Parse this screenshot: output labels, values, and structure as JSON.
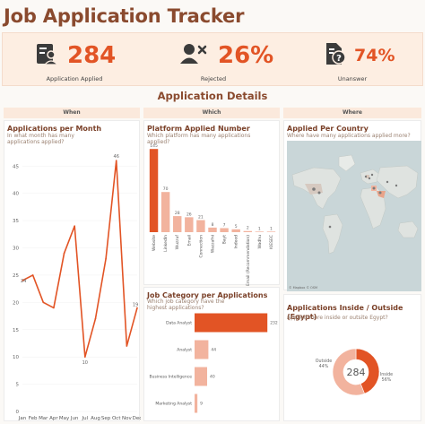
{
  "header": {
    "title": "Job Application Tracker"
  },
  "kpis": [
    {
      "icon": "id-card-icon",
      "value": "284",
      "label": "Application Applied"
    },
    {
      "icon": "user-x-icon",
      "value": "26%",
      "label": "Rejected"
    },
    {
      "icon": "file-question-icon",
      "value": "74%",
      "label": "Unanswer"
    }
  ],
  "section": {
    "title": "Application Details"
  },
  "columns": {
    "when": "When",
    "which": "Which",
    "where": "Where"
  },
  "colors": {
    "accent": "#e25425",
    "light": "#f2b39e",
    "title": "#8a4a2e",
    "band": "#fdeee2"
  },
  "panels": {
    "month": {
      "title": "Applications per Month",
      "subtitle": "In what month has many applications applied?"
    },
    "platform": {
      "title": "Platform Applied Number",
      "subtitle": "Which platform has many applications applied?"
    },
    "country": {
      "title": "Applied Per Country",
      "subtitle": "Where have many applications applied more?",
      "map_note": "© Mapbox © OSM"
    },
    "category": {
      "title": "Job Category per Applications",
      "subtitle": "Which job category have the highest applications?"
    },
    "inout": {
      "title": "Applications Inside / Outside (Egypt)",
      "subtitle": "Applied more inside or outsite Egypt?",
      "center": "284"
    }
  },
  "chart_data": [
    {
      "type": "line",
      "title": "Applications per Month",
      "x": [
        "Jan",
        "Feb",
        "Mar",
        "Apr",
        "May",
        "Jun",
        "Jul",
        "Aug",
        "Sep",
        "Oct",
        "Nov",
        "Dec"
      ],
      "values": [
        24,
        25,
        20,
        19,
        29,
        34,
        10,
        17,
        28,
        46,
        12,
        19
      ],
      "point_labels": {
        "0": "24",
        "6": "10",
        "9": "46",
        "11": "19"
      },
      "yticks": [
        0,
        5,
        10,
        15,
        20,
        25,
        30,
        35,
        40,
        45
      ],
      "ylim": [
        0,
        48
      ]
    },
    {
      "type": "bar",
      "title": "Platform Applied Number",
      "categories": [
        "Website",
        "LinkedIn",
        "Wuzzuf",
        "Email",
        "Connection",
        "Wazzafni",
        "Bayt",
        "Indeed",
        "Email (Recommendation)",
        "Wadhu",
        "KIESEC"
      ],
      "values": [
        145,
        70,
        28,
        26,
        21,
        8,
        7,
        5,
        2,
        1,
        1
      ],
      "ylim": [
        0,
        150
      ]
    },
    {
      "type": "bar",
      "orientation": "horizontal",
      "title": "Job Category per Applications",
      "categories": [
        "Data Analyst",
        "Analyst",
        "Business Intelligence",
        "Marketing Analyst"
      ],
      "values": [
        232,
        44,
        40,
        9
      ],
      "xlim": [
        0,
        240
      ]
    },
    {
      "type": "pie",
      "title": "Applications Inside / Outside (Egypt)",
      "slices": [
        {
          "name": "Outside",
          "label": "Outside\n44%",
          "value": 44
        },
        {
          "name": "Inside",
          "label": "Inside\n56%",
          "value": 56
        }
      ],
      "center": "284"
    }
  ]
}
